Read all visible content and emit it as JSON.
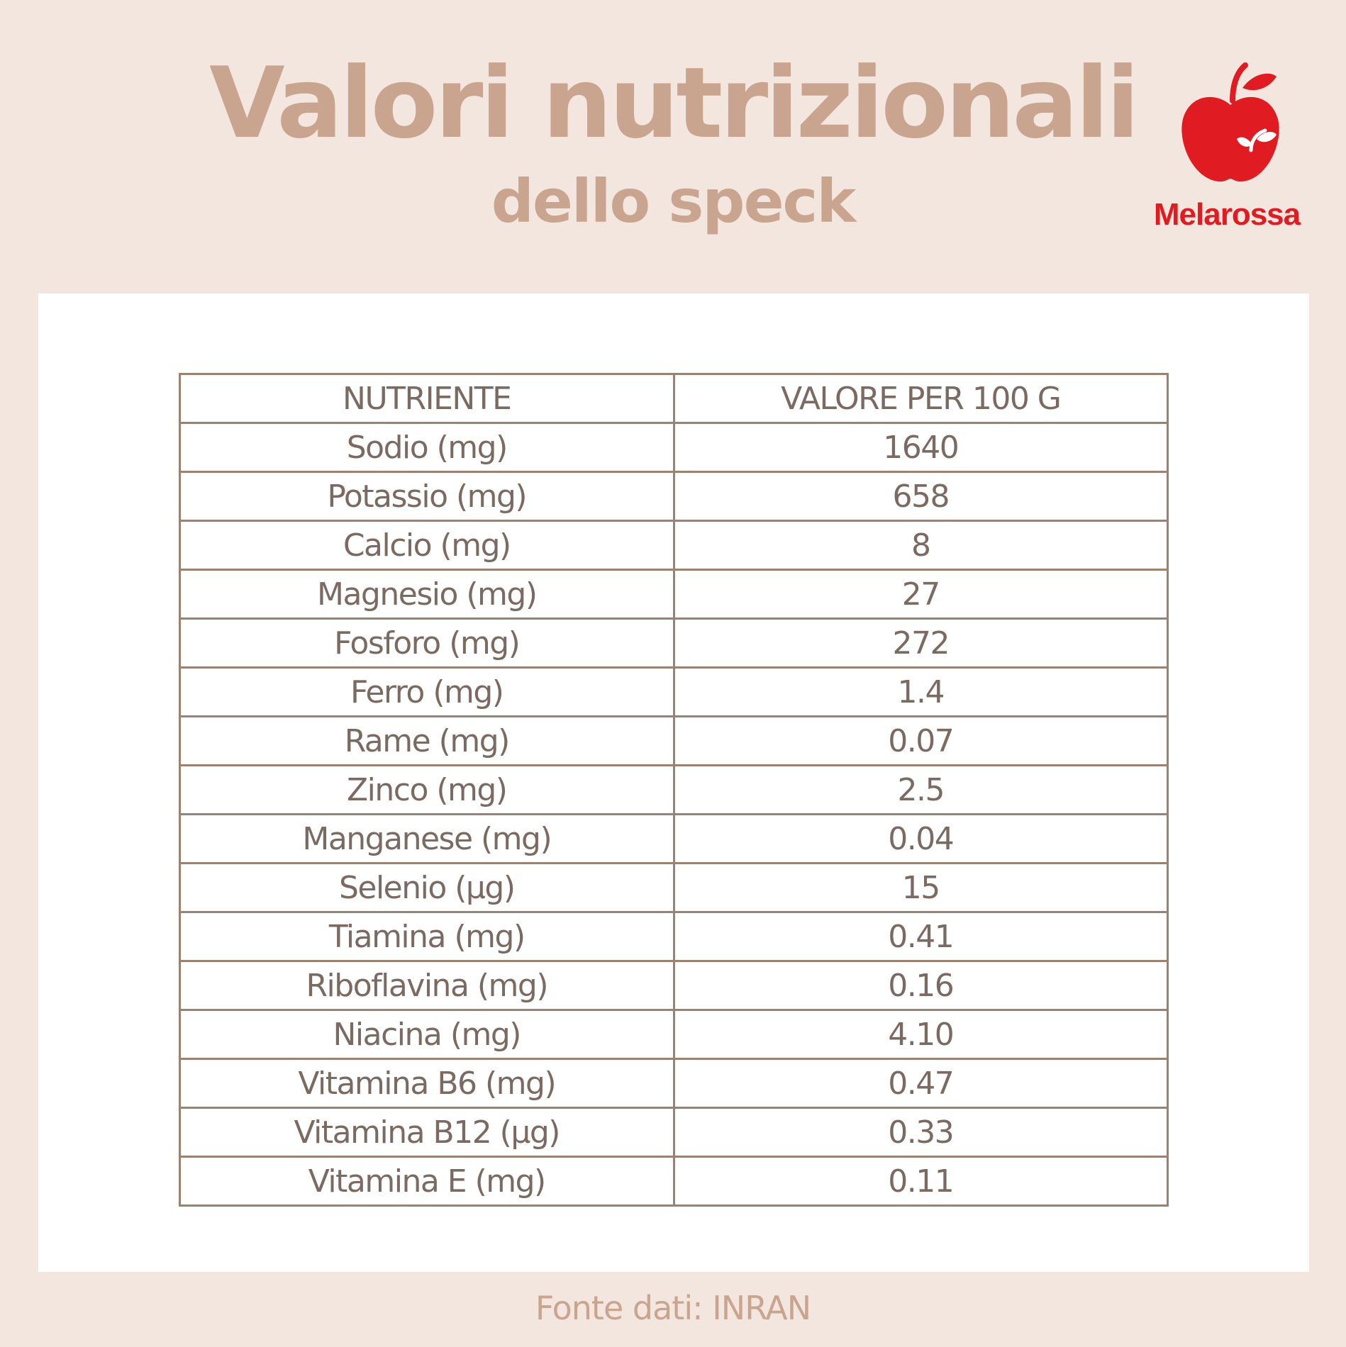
{
  "header": {
    "title": "Valori nutrizionali",
    "subtitle": "dello speck"
  },
  "logo": {
    "icon": "apple-icon",
    "brand_name": "Melarossa",
    "brand_color": "#e11b22"
  },
  "table": {
    "headers": [
      "NUTRIENTE",
      "VALORE PER 100 G"
    ],
    "rows": [
      [
        "Sodio (mg)",
        "1640"
      ],
      [
        "Potassio (mg)",
        "658"
      ],
      [
        "Calcio (mg)",
        "8"
      ],
      [
        "Magnesio (mg)",
        "27"
      ],
      [
        "Fosforo (mg)",
        "272"
      ],
      [
        "Ferro (mg)",
        "1.4"
      ],
      [
        "Rame (mg)",
        "0.07"
      ],
      [
        "Zinco (mg)",
        "2.5"
      ],
      [
        "Manganese (mg)",
        "0.04"
      ],
      [
        "Selenio (μg)",
        "15"
      ],
      [
        "Tiamina (mg)",
        "0.41"
      ],
      [
        "Riboflavina (mg)",
        "0.16"
      ],
      [
        "Niacina (mg)",
        "4.10"
      ],
      [
        "Vitamina B6 (mg)",
        "0.47"
      ],
      [
        "Vitamina B12 (μg)",
        "0.33"
      ],
      [
        "Vitamina E (mg)",
        "0.11"
      ]
    ]
  },
  "footer": {
    "source": "Fonte dati: INRAN"
  },
  "colors": {
    "background": "#f2e6df",
    "title": "#c9a590",
    "table_border": "#9c8070",
    "table_text": "#7a6a62"
  }
}
